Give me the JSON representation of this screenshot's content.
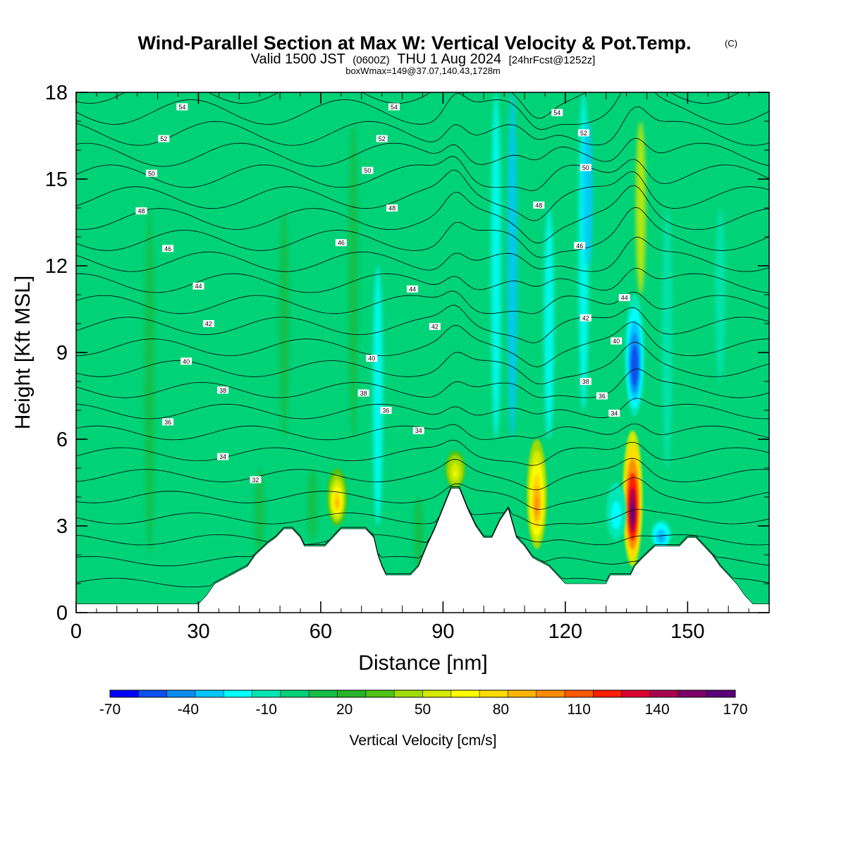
{
  "title": {
    "main": "Wind-Parallel Section at Max W: Vertical Velocity & Pot.Temp.",
    "main_suffix": "(C)",
    "valid_prefix": "Valid 1500 JST",
    "valid_utc": "(0600Z)",
    "valid_date": "THU 1 Aug 2024",
    "forecast": "[24hrFcst@1252z]",
    "boxwmax": "boxWmax=149@37.07,140.43,1728m"
  },
  "chart_data": {
    "type": "heatmap",
    "xlabel": "Distance [nm]",
    "ylabel": "Height [Kft MSL]",
    "xlim": [
      0,
      170
    ],
    "ylim": [
      0,
      18
    ],
    "x_ticks": [
      0,
      30,
      60,
      90,
      120,
      150
    ],
    "y_ticks": [
      0,
      3,
      6,
      9,
      12,
      15,
      18
    ],
    "colorbar": {
      "title": "Vertical Velocity [cm/s]",
      "min": -70,
      "max": 170,
      "step": 10,
      "tick_labels": [
        "-70",
        "-40",
        "-10",
        "20",
        "50",
        "80",
        "110",
        "140",
        "170"
      ],
      "colors": [
        "#0000ff",
        "#0a50f0",
        "#0a8cf0",
        "#00c8ff",
        "#00ffff",
        "#00e6b4",
        "#00d278",
        "#14be46",
        "#28b428",
        "#50c314",
        "#a0dc00",
        "#d2eb00",
        "#ffff00",
        "#ffdc00",
        "#ffb400",
        "#ff8c00",
        "#ff5a00",
        "#ff1e00",
        "#dc0032",
        "#aa0050",
        "#7d0069",
        "#5a0078"
      ]
    },
    "terrain_kft": [
      [
        0,
        0.3
      ],
      [
        30,
        0.3
      ],
      [
        32,
        0.6
      ],
      [
        34,
        1.0
      ],
      [
        38,
        1.3
      ],
      [
        42,
        1.6
      ],
      [
        44,
        2.0
      ],
      [
        47,
        2.4
      ],
      [
        49,
        2.6
      ],
      [
        51,
        2.9
      ],
      [
        53,
        2.9
      ],
      [
        55,
        2.6
      ],
      [
        56,
        2.3
      ],
      [
        61,
        2.3
      ],
      [
        63,
        2.6
      ],
      [
        65,
        2.9
      ],
      [
        71,
        2.9
      ],
      [
        73,
        2.6
      ],
      [
        74,
        2.0
      ],
      [
        75,
        1.6
      ],
      [
        76,
        1.3
      ],
      [
        82,
        1.3
      ],
      [
        84,
        1.6
      ],
      [
        86,
        2.3
      ],
      [
        88,
        2.9
      ],
      [
        90,
        3.6
      ],
      [
        92,
        4.3
      ],
      [
        94,
        4.3
      ],
      [
        96,
        3.6
      ],
      [
        98,
        3.0
      ],
      [
        100,
        2.6
      ],
      [
        102,
        2.6
      ],
      [
        104,
        3.2
      ],
      [
        106,
        3.6
      ],
      [
        108,
        2.6
      ],
      [
        110,
        2.3
      ],
      [
        112,
        1.9
      ],
      [
        116,
        1.6
      ],
      [
        118,
        1.3
      ],
      [
        120,
        1.0
      ],
      [
        130,
        1.0
      ],
      [
        131,
        1.3
      ],
      [
        136,
        1.3
      ],
      [
        137,
        1.6
      ],
      [
        139,
        1.9
      ],
      [
        142,
        2.3
      ],
      [
        148,
        2.3
      ],
      [
        150,
        2.6
      ],
      [
        152,
        2.6
      ],
      [
        154,
        2.3
      ],
      [
        156,
        2.0
      ],
      [
        158,
        1.6
      ],
      [
        160,
        1.3
      ],
      [
        162,
        1.0
      ],
      [
        164,
        0.6
      ],
      [
        166,
        0.3
      ],
      [
        170,
        0.3
      ]
    ],
    "theta_contours_c": [
      31,
      32,
      33,
      34,
      35,
      36,
      37,
      38,
      39,
      40,
      41,
      42,
      43,
      44,
      45,
      46,
      47,
      48,
      49,
      50,
      51,
      52,
      53,
      54
    ],
    "contour_labels": [
      {
        "value": "54",
        "x": 26,
        "y": 17.5
      },
      {
        "value": "54",
        "x": 78,
        "y": 17.5
      },
      {
        "value": "54",
        "x": 118,
        "y": 17.3
      },
      {
        "value": "52",
        "x": 21.5,
        "y": 16.4
      },
      {
        "value": "52",
        "x": 75,
        "y": 16.4
      },
      {
        "value": "52",
        "x": 124.5,
        "y": 16.6
      },
      {
        "value": "50",
        "x": 18.5,
        "y": 15.2
      },
      {
        "value": "50",
        "x": 71.5,
        "y": 15.3
      },
      {
        "value": "50",
        "x": 125,
        "y": 15.4
      },
      {
        "value": "48",
        "x": 16,
        "y": 13.9
      },
      {
        "value": "48",
        "x": 77.5,
        "y": 14.0
      },
      {
        "value": "48",
        "x": 113.5,
        "y": 14.1
      },
      {
        "value": "46",
        "x": 22.5,
        "y": 12.6
      },
      {
        "value": "46",
        "x": 65,
        "y": 12.8
      },
      {
        "value": "46",
        "x": 123.5,
        "y": 12.7
      },
      {
        "value": "44",
        "x": 30,
        "y": 11.3
      },
      {
        "value": "44",
        "x": 82.5,
        "y": 11.2
      },
      {
        "value": "44",
        "x": 134.5,
        "y": 10.9
      },
      {
        "value": "42",
        "x": 32.5,
        "y": 10.0
      },
      {
        "value": "42",
        "x": 88,
        "y": 9.9
      },
      {
        "value": "42",
        "x": 125,
        "y": 10.2
      },
      {
        "value": "40",
        "x": 27,
        "y": 8.7
      },
      {
        "value": "40",
        "x": 72.5,
        "y": 8.8
      },
      {
        "value": "40",
        "x": 132.5,
        "y": 9.4
      },
      {
        "value": "38",
        "x": 36,
        "y": 7.7
      },
      {
        "value": "38",
        "x": 70.5,
        "y": 7.6
      },
      {
        "value": "38",
        "x": 125,
        "y": 8.0
      },
      {
        "value": "36",
        "x": 22.5,
        "y": 6.6
      },
      {
        "value": "36",
        "x": 76,
        "y": 7.0
      },
      {
        "value": "36",
        "x": 129,
        "y": 7.5
      },
      {
        "value": "34",
        "x": 36,
        "y": 5.4
      },
      {
        "value": "34",
        "x": 84,
        "y": 6.3
      },
      {
        "value": "34",
        "x": 132,
        "y": 6.9
      },
      {
        "value": "32",
        "x": 44,
        "y": 4.6
      }
    ],
    "updraft_cores": [
      {
        "x": 136.5,
        "z_bottom": 1.6,
        "z_top": 6.3,
        "peak_cm_s": 149
      },
      {
        "x": 113,
        "z_bottom": 2.2,
        "z_top": 6.0,
        "peak_cm_s": 85
      },
      {
        "x": 64,
        "z_bottom": 3.0,
        "z_top": 5.0,
        "peak_cm_s": 70
      },
      {
        "x": 93,
        "z_bottom": 4.3,
        "z_top": 5.6,
        "peak_cm_s": 55
      }
    ],
    "downdraft_cores": [
      {
        "x": 137,
        "z_bottom": 6.8,
        "z_top": 11.0,
        "peak_cm_s": -60
      },
      {
        "x": 143.5,
        "z_bottom": 2.2,
        "z_top": 3.2,
        "peak_cm_s": -45
      },
      {
        "x": 132.5,
        "z_bottom": 2.5,
        "z_top": 4.5,
        "peak_cm_s": -30
      }
    ]
  }
}
